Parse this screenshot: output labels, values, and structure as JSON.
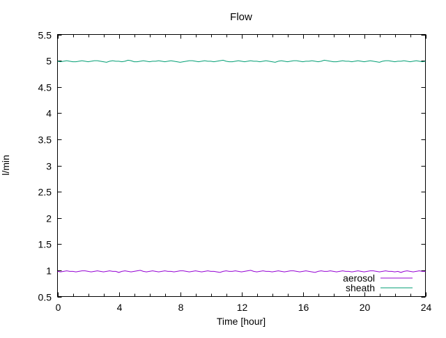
{
  "title": "Flow",
  "axes": {
    "x": {
      "label": "Time [hour]",
      "min": 0,
      "max": 24,
      "major_tick_values": [
        0,
        4,
        8,
        12,
        16,
        20,
        24
      ],
      "major_tick_labels": [
        "0",
        "4",
        "8",
        "12",
        "16",
        "20",
        "24"
      ],
      "minor_step": 1
    },
    "y": {
      "label": "l/min",
      "min": 0.5,
      "max": 5.5,
      "major_tick_values": [
        0.5,
        1,
        1.5,
        2,
        2.5,
        3,
        3.5,
        4,
        4.5,
        5,
        5.5
      ],
      "major_tick_labels": [
        "0.5",
        "1",
        "1.5",
        "2",
        "2.5",
        "3",
        "3.5",
        "4",
        "4.5",
        "5",
        "5.5"
      ]
    }
  },
  "legend": {
    "entries": [
      {
        "label": "aerosol",
        "color": "#9400d3"
      },
      {
        "label": "sheath",
        "color": "#009e73"
      }
    ]
  },
  "colors": {
    "background": "#ffffff",
    "border": "#000000",
    "text": "#000000"
  },
  "chart_data": {
    "type": "line",
    "title": "Flow",
    "xlabel": "Time [hour]",
    "ylabel": "l/min",
    "xlim": [
      0,
      24
    ],
    "ylim": [
      0.5,
      5.5
    ],
    "grid": false,
    "legend_position": "bottom-right-inside",
    "x_start": 0,
    "x_step": 0.2,
    "series": [
      {
        "name": "aerosol",
        "color": "#9400d3",
        "values": [
          0.98,
          0.97,
          0.98,
          0.99,
          0.98,
          0.98,
          0.97,
          0.98,
          0.99,
          0.99,
          0.98,
          0.97,
          0.98,
          0.99,
          0.98,
          0.97,
          0.98,
          0.99,
          0.98,
          0.98,
          0.96,
          0.98,
          0.99,
          0.98,
          0.97,
          0.98,
          0.99,
          1.0,
          0.98,
          0.97,
          0.98,
          0.99,
          0.98,
          0.97,
          0.98,
          0.99,
          0.98,
          0.98,
          0.97,
          0.98,
          0.99,
          0.99,
          0.98,
          0.97,
          0.98,
          0.99,
          0.98,
          0.97,
          0.98,
          0.99,
          0.98,
          0.98,
          0.97,
          0.96,
          0.98,
          0.99,
          0.98,
          0.98,
          0.99,
          0.98,
          0.97,
          0.98,
          0.99,
          1.0,
          0.98,
          0.97,
          0.98,
          0.99,
          0.98,
          0.98,
          0.97,
          0.98,
          0.99,
          0.98,
          0.97,
          0.98,
          0.99,
          0.99,
          0.98,
          0.97,
          0.98,
          0.99,
          0.98,
          0.97,
          0.96,
          0.98,
          0.99,
          0.98,
          0.98,
          0.99,
          0.98,
          0.97,
          0.98,
          0.99,
          0.98,
          0.98,
          0.97,
          0.98,
          0.99,
          0.98,
          0.97,
          0.98,
          0.99,
          0.99,
          0.98,
          0.97,
          0.98,
          0.99,
          0.98,
          0.98,
          0.97,
          0.98,
          0.96,
          0.98,
          0.99,
          0.98,
          0.97,
          0.98,
          0.99,
          0.98,
          0.98
        ]
      },
      {
        "name": "sheath",
        "color": "#009e73",
        "values": [
          4.99,
          4.98,
          4.99,
          5.0,
          4.99,
          4.98,
          4.98,
          4.99,
          5.0,
          4.99,
          4.98,
          4.99,
          5.0,
          5.0,
          4.99,
          4.98,
          4.97,
          4.99,
          5.0,
          4.99,
          4.99,
          4.98,
          4.99,
          5.01,
          5.0,
          4.98,
          4.98,
          4.99,
          5.0,
          4.99,
          4.98,
          4.99,
          4.99,
          5.0,
          4.99,
          4.98,
          4.99,
          5.0,
          4.99,
          4.98,
          4.97,
          4.98,
          4.99,
          5.0,
          5.0,
          4.99,
          4.98,
          4.99,
          5.0,
          4.99,
          4.99,
          4.98,
          4.99,
          5.0,
          5.01,
          4.99,
          4.98,
          4.98,
          4.99,
          5.0,
          4.99,
          4.98,
          4.99,
          5.0,
          4.99,
          4.99,
          4.98,
          4.99,
          5.0,
          4.99,
          4.98,
          4.97,
          4.99,
          5.0,
          4.99,
          4.98,
          4.99,
          5.0,
          5.0,
          4.99,
          4.98,
          4.99,
          4.99,
          5.0,
          4.99,
          4.98,
          4.99,
          5.01,
          5.0,
          4.99,
          4.98,
          4.98,
          4.99,
          5.0,
          4.99,
          4.99,
          4.98,
          4.99,
          5.0,
          4.99,
          4.98,
          4.99,
          5.0,
          4.99,
          4.98,
          4.97,
          4.99,
          5.0,
          5.0,
          4.99,
          4.98,
          4.99,
          4.99,
          5.0,
          4.99,
          4.98,
          4.99,
          5.0,
          4.99,
          4.98,
          4.99
        ]
      }
    ]
  }
}
